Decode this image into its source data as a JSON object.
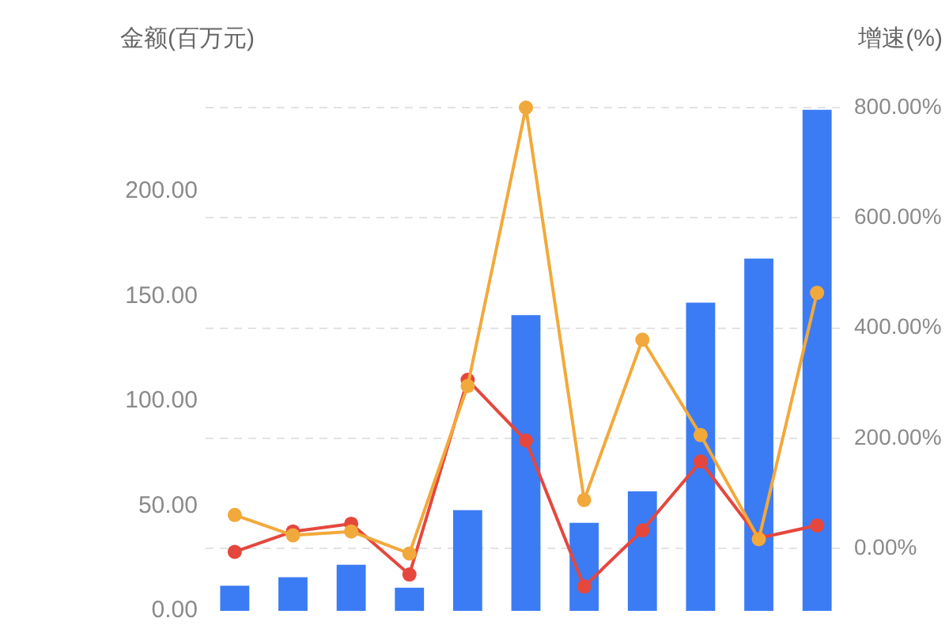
{
  "chart_data": {
    "type": "bar",
    "ylabel": "金额(百万元)",
    "y2label": "增速(%)",
    "categories": [
      null,
      null,
      null,
      null,
      null,
      null,
      null,
      null,
      null,
      null,
      null
    ],
    "series": [
      {
        "color": "#3b7cf4",
        "values": [
          12,
          16,
          22,
          11,
          48,
          141,
          42,
          57,
          147,
          168,
          239
        ]
      },
      {
        "type": "line",
        "axis": "y2",
        "color": "#e5473d",
        "values": [
          -6,
          31,
          45,
          -47,
          306,
          196,
          -69,
          33,
          158,
          19,
          42
        ]
      },
      {
        "type": "line",
        "axis": "y2",
        "color": "#f2a93b",
        "values": [
          61,
          24,
          31,
          -9,
          295,
          800,
          88,
          379,
          206,
          17,
          464
        ]
      }
    ],
    "ylim": [
      0,
      240
    ],
    "yticks": [
      {
        "value": 0,
        "label": "0.00"
      },
      {
        "value": 50,
        "label": "50.00"
      },
      {
        "value": 100,
        "label": "100.00"
      },
      {
        "value": 150,
        "label": "150.00"
      },
      {
        "value": 200,
        "label": "200.00"
      }
    ],
    "y2lim": [
      -113,
      800
    ],
    "y2ticks": [
      {
        "value": 0,
        "label": "0.00%"
      },
      {
        "value": 200,
        "label": "200.00%"
      },
      {
        "value": 400,
        "label": "400.00%"
      },
      {
        "value": 600,
        "label": "600.00%"
      },
      {
        "value": 800,
        "label": "800.00%"
      }
    ],
    "grid": "y2",
    "marker": "circle"
  }
}
